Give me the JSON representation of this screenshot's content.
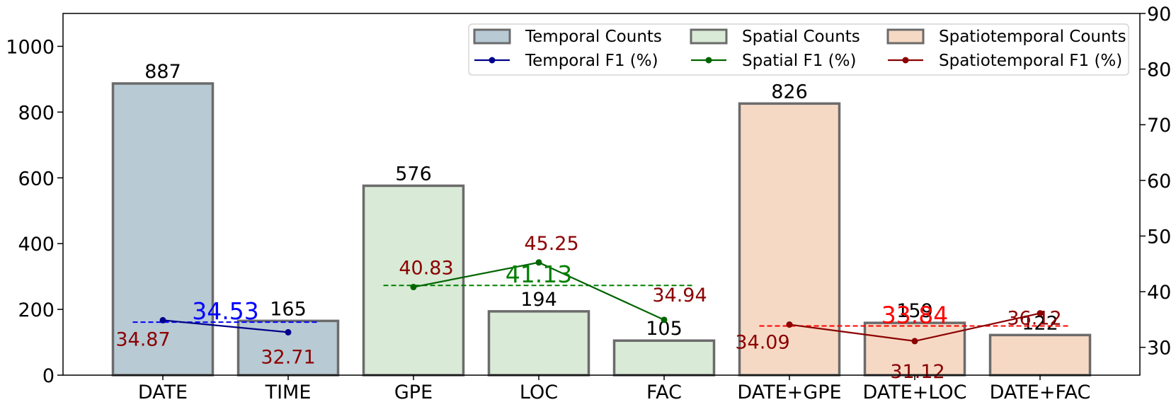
{
  "chart_data": {
    "type": "bar",
    "categories": [
      "DATE",
      "TIME",
      "GPE",
      "LOC",
      "FAC",
      "DATE+GPE",
      "DATE+LOC",
      "DATE+FAC"
    ],
    "counts": [
      887,
      165,
      576,
      194,
      105,
      826,
      159,
      122
    ],
    "count_labels": [
      "887",
      "165",
      "576",
      "194",
      "105",
      "826",
      "159",
      "122"
    ],
    "groups": [
      {
        "name": "Temporal Counts",
        "start": 0,
        "end": 1,
        "fill": "#b8cad4",
        "stroke": "#6b6b6b"
      },
      {
        "name": "Spatial Counts",
        "start": 2,
        "end": 4,
        "fill": "#d9ead6",
        "stroke": "#6b6b6b"
      },
      {
        "name": "Spatiotemporal Counts",
        "start": 5,
        "end": 7,
        "fill": "#f6d9c4",
        "stroke": "#6b6b6b"
      }
    ],
    "f1_series": [
      {
        "name": "Temporal F1 (%)",
        "color": "#00008b",
        "indices": [
          0,
          1
        ],
        "values": [
          34.87,
          32.71
        ],
        "labels": [
          "34.87",
          "32.71"
        ],
        "avg": 34.53,
        "avg_label": "34.53",
        "avg_color": "#0000ff"
      },
      {
        "name": "Spatial F1 (%)",
        "color": "#006400",
        "indices": [
          2,
          3,
          4
        ],
        "values": [
          40.83,
          45.25,
          34.94
        ],
        "labels": [
          "40.83",
          "45.25",
          "34.94"
        ],
        "avg": 41.13,
        "avg_label": "41.13",
        "avg_color": "#008000"
      },
      {
        "name": "Spatiotemporal F1 (%)",
        "color": "#8b0000",
        "indices": [
          5,
          6,
          7
        ],
        "values": [
          34.09,
          31.12,
          36.12
        ],
        "labels": [
          "34.09",
          "31.12",
          "36.12"
        ],
        "avg": 33.84,
        "avg_label": "33.84",
        "avg_color": "#ff0000"
      }
    ],
    "f1_label_color": "#8b0000",
    "y_left": {
      "lim": [
        0,
        1100
      ],
      "ticks": [
        0,
        200,
        400,
        600,
        800,
        1000
      ]
    },
    "y_right": {
      "lim": [
        25,
        90
      ],
      "ticks": [
        30,
        40,
        50,
        60,
        70,
        80,
        90
      ]
    },
    "grid": false,
    "legend": {
      "location": "top-right",
      "columns": 3,
      "entries": [
        {
          "label": "Temporal Counts",
          "kind": "patch",
          "fill": "#b8cad4"
        },
        {
          "label": "Spatial Counts",
          "kind": "patch",
          "fill": "#d9ead6"
        },
        {
          "label": "Spatiotemporal Counts",
          "kind": "patch",
          "fill": "#f6d9c4"
        },
        {
          "label": "Temporal F1 (%)",
          "kind": "line",
          "color": "#00008b"
        },
        {
          "label": "Spatial F1 (%)",
          "kind": "line",
          "color": "#006400"
        },
        {
          "label": "Spatiotemporal F1 (%)",
          "kind": "line",
          "color": "#8b0000"
        }
      ]
    }
  }
}
